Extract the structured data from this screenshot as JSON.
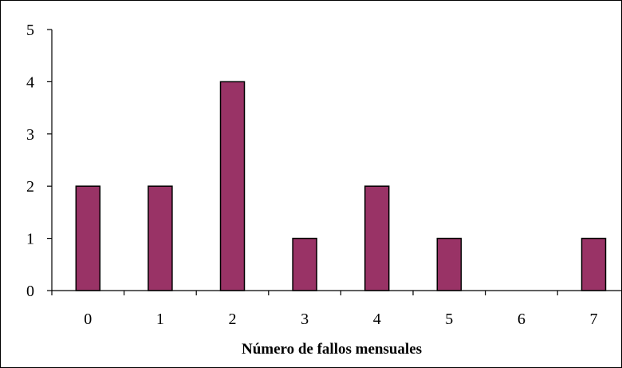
{
  "chart_data": {
    "type": "bar",
    "categories": [
      "0",
      "1",
      "2",
      "3",
      "4",
      "5",
      "6",
      "7"
    ],
    "values": [
      2,
      2,
      4,
      1,
      2,
      1,
      0,
      1
    ],
    "title": "",
    "xlabel": "Número de fallos mensuales",
    "ylabel": "",
    "ylim": [
      0,
      5
    ],
    "yticks": [
      "0",
      "1",
      "2",
      "3",
      "4",
      "5"
    ],
    "grid": false,
    "legend": "none",
    "bar_color": "#993366",
    "bar_edge_color": "#000000"
  }
}
